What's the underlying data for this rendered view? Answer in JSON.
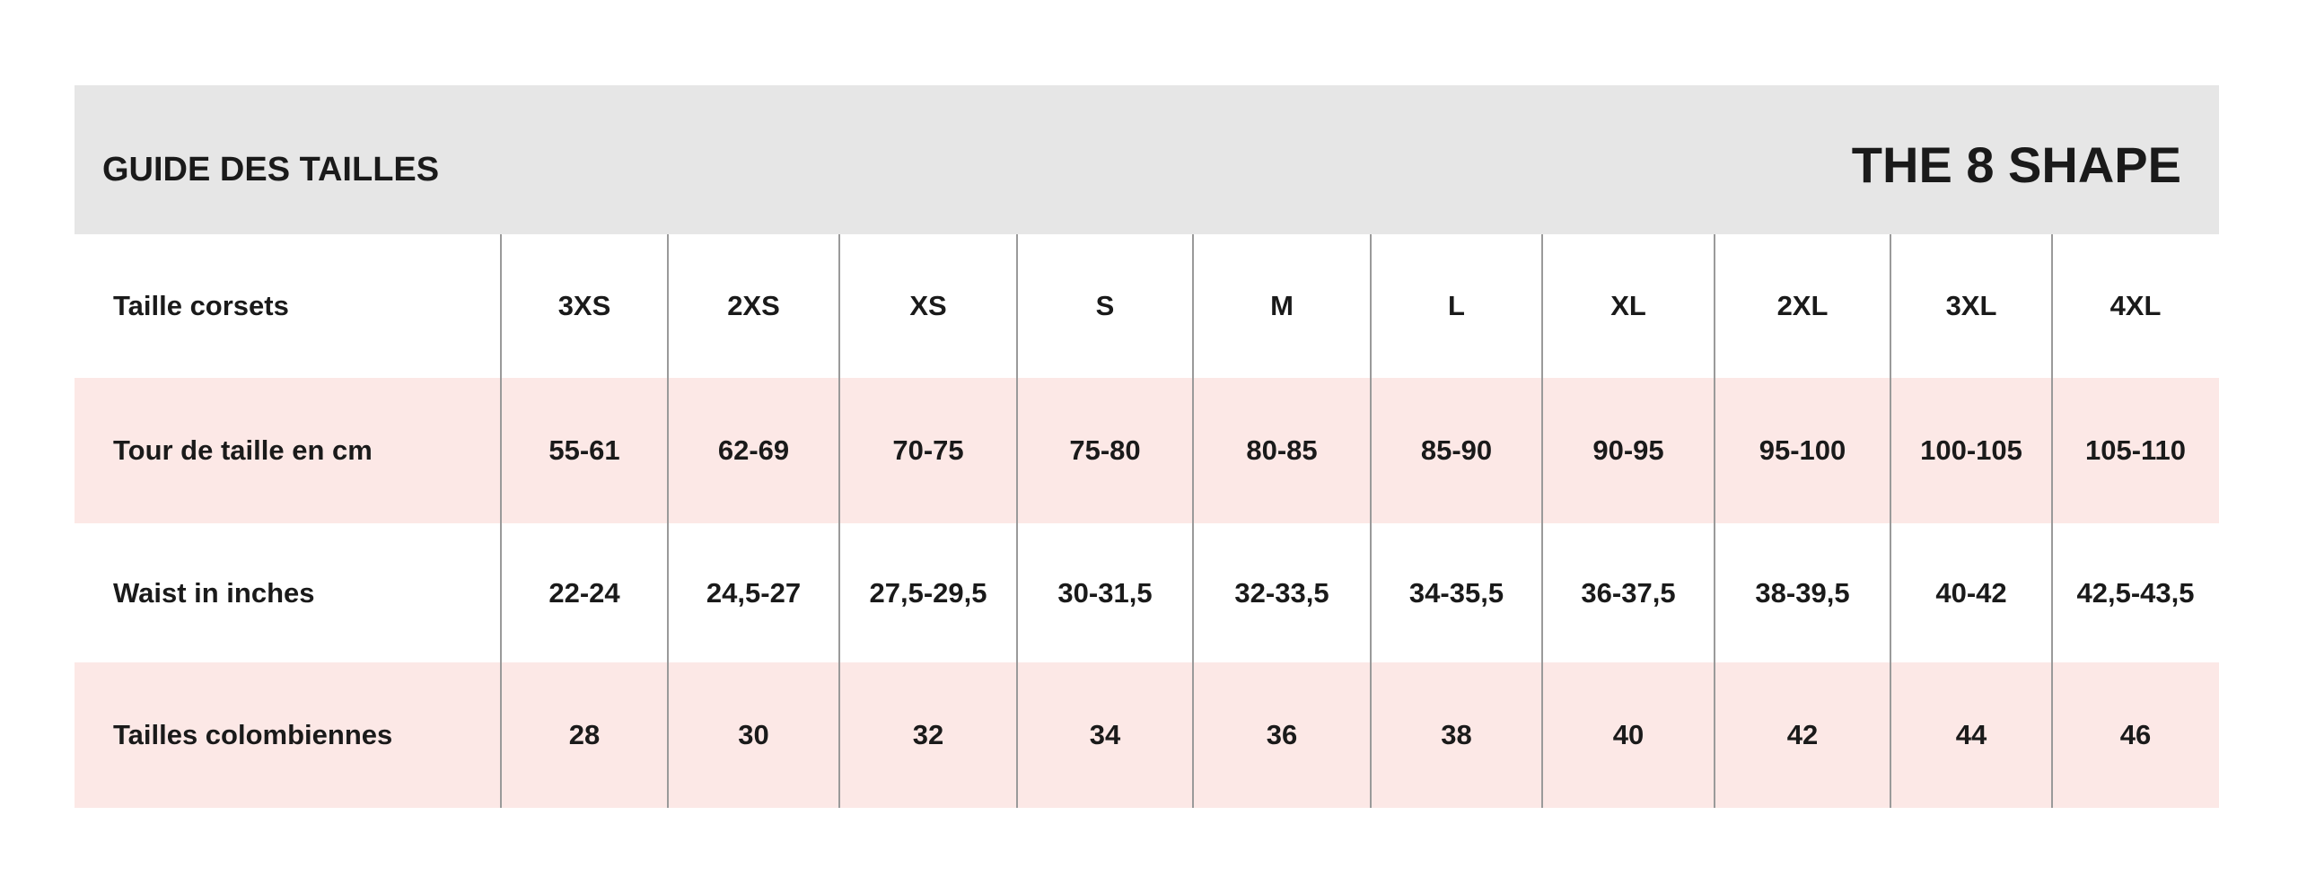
{
  "header": {
    "title": "GUIDE DES TAILLES",
    "brand": "THE 8 SHAPE"
  },
  "table": {
    "rows": [
      [
        "Taille corsets",
        "3XS",
        "2XS",
        "XS",
        "S",
        "M",
        "L",
        "XL",
        "2XL",
        "3XL",
        "4XL"
      ],
      [
        "Tour de taille en cm",
        "55-61",
        "62-69",
        "70-75",
        "75-80",
        "80-85",
        "85-90",
        "90-95",
        "95-100",
        "100-105",
        "105-110"
      ],
      [
        "Waist in inches",
        "22-24",
        "24,5-27",
        "27,5-29,5",
        "30-31,5",
        "32-33,5",
        "34-35,5",
        "36-37,5",
        "38-39,5",
        "40-42",
        "42,5-43,5"
      ],
      [
        "Tailles colombiennes",
        "28",
        "30",
        "32",
        "34",
        "36",
        "38",
        "40",
        "42",
        "44",
        "46"
      ]
    ]
  }
}
